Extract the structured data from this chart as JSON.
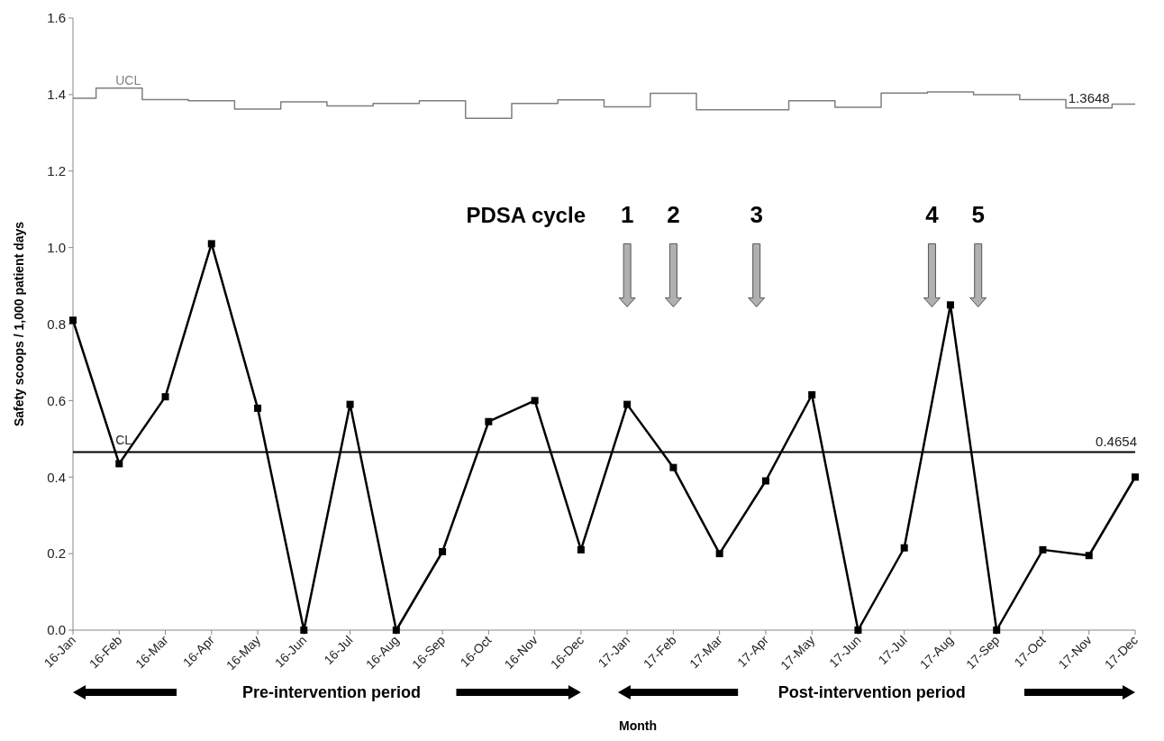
{
  "chart_data": {
    "type": "line",
    "xlabel": "Month",
    "ylabel": "Safety scoops / 1,000 patient days",
    "categories": [
      "16-Jan",
      "16-Feb",
      "16-Mar",
      "16-Apr",
      "16-May",
      "16-Jun",
      "16-Jul",
      "16-Aug",
      "16-Sep",
      "16-Oct",
      "16-Nov",
      "16-Dec",
      "17-Jan",
      "17-Feb",
      "17-Mar",
      "17-Apr",
      "17-May",
      "17-Jun",
      "17-Jul",
      "17-Aug",
      "17-Sep",
      "17-Oct",
      "17-Nov",
      "17-Dec"
    ],
    "series": [
      {
        "color": "#000000",
        "marker": "square",
        "values": [
          0.81,
          0.435,
          0.61,
          1.01,
          0.58,
          0.0,
          0.59,
          0.0,
          0.205,
          0.545,
          0.6,
          0.21,
          0.59,
          0.425,
          0.2,
          0.39,
          0.615,
          0.0,
          0.215,
          0.85,
          0.0,
          0.21,
          0.195,
          0.4
        ]
      },
      {
        "name": "UCL",
        "type": "step",
        "color": "#7f7f7f",
        "marker": "none",
        "values": [
          1.39,
          1.417,
          1.387,
          1.384,
          1.362,
          1.381,
          1.37,
          1.377,
          1.384,
          1.338,
          1.377,
          1.386,
          1.368,
          1.403,
          1.36,
          1.36,
          1.384,
          1.367,
          1.404,
          1.407,
          1.4,
          1.387,
          1.365,
          1.375
        ]
      }
    ],
    "ylim": [
      0,
      1.6
    ],
    "yticks": [
      {
        "value": 0,
        "label": "0.0"
      },
      {
        "value": 0.2,
        "label": "0.2"
      },
      {
        "value": 0.4,
        "label": "0.4"
      },
      {
        "value": 0.6,
        "label": "0.6"
      },
      {
        "value": 0.8,
        "label": "0.8"
      },
      {
        "value": 1.0,
        "label": "1.0"
      },
      {
        "value": 1.2,
        "label": "1.2"
      },
      {
        "value": 1.4,
        "label": "1.4"
      },
      {
        "value": 1.6,
        "label": "1.6"
      }
    ],
    "ref_lines": [
      {
        "axis": "y",
        "value": 0.4654,
        "label": "CL",
        "color": "#000000"
      }
    ],
    "annotations": [
      "PDSA cycle",
      "1",
      "2",
      "3",
      "4",
      "5",
      "Pre-intervention period",
      "Post-intervention period",
      {
        "text": "0.4654",
        "x": "17-Dec",
        "y": 0.4654
      },
      {
        "text": "1.3648",
        "x": "17-Nov",
        "y": 1.3648
      }
    ],
    "grid": false,
    "legend": false,
    "line_style": "solid"
  }
}
